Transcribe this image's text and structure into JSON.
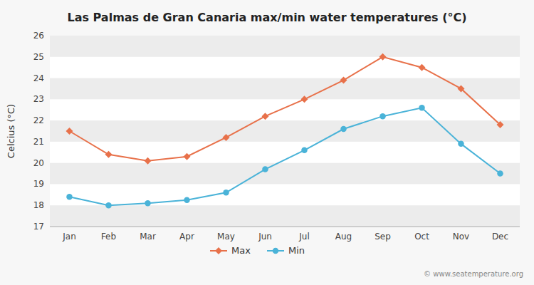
{
  "chart_data": {
    "type": "line",
    "title": "Las Palmas de Gran Canaria max/min water temperatures (°C)",
    "y_label": "Celcius (°C)",
    "categories": [
      "Jan",
      "Feb",
      "Mar",
      "Apr",
      "May",
      "Jun",
      "Jul",
      "Aug",
      "Sep",
      "Oct",
      "Nov",
      "Dec"
    ],
    "series": [
      {
        "name": "Max",
        "color": "#e8714a",
        "marker": "diamond",
        "line_style": "solid",
        "values": [
          21.5,
          20.4,
          20.1,
          20.3,
          21.2,
          22.2,
          23.0,
          23.9,
          25.0,
          24.5,
          23.5,
          21.8
        ]
      },
      {
        "name": "Min",
        "color": "#4ab3d8",
        "marker": "circle",
        "line_style": "solid",
        "values": [
          18.4,
          18.0,
          18.1,
          18.25,
          18.6,
          19.7,
          20.6,
          21.6,
          22.2,
          22.6,
          20.9,
          19.5
        ]
      }
    ],
    "ylim": [
      17,
      26
    ],
    "yticks": [
      17,
      18,
      19,
      20,
      21,
      22,
      23,
      24,
      25,
      26
    ],
    "grid": false,
    "legend": "bottom",
    "annotations": [
      "© www.seatemperature.org"
    ]
  }
}
